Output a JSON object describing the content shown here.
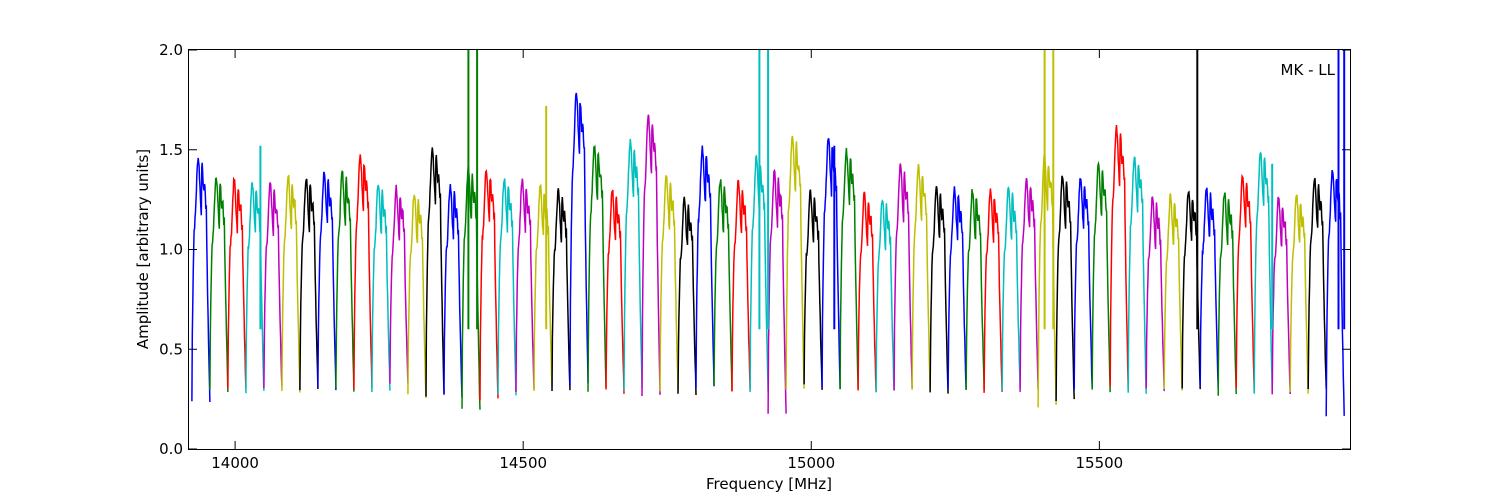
{
  "chart_data": {
    "type": "line",
    "title": "",
    "xlabel": "Frequency [MHz]",
    "ylabel": "Amplitude [arbitrary units]",
    "annotation": "MK - LL",
    "xlim": [
      13920,
      15935
    ],
    "ylim": [
      0.0,
      2.0
    ],
    "xticks": [
      14000,
      14500,
      15000,
      15500
    ],
    "yticks": [
      0.0,
      0.5,
      1.0,
      1.5,
      2.0
    ],
    "xtick_labels": [
      "14000",
      "14500",
      "15000",
      "15500"
    ],
    "ytick_labels": [
      "0.0",
      "0.5",
      "1.0",
      "1.5",
      "2.0"
    ],
    "grid": false,
    "legend": "none",
    "colors": [
      "#0000ff",
      "#008000",
      "#ff0000",
      "#00bfbf",
      "#bf00bf",
      "#bfbf00",
      "#000000"
    ],
    "band_start_mhz": 13925,
    "band_spacing_mhz": 31.25,
    "band_peaks": [
      1.4,
      1.31,
      1.29,
      1.28,
      1.27,
      1.31,
      1.3,
      1.33,
      1.33,
      1.41,
      1.27,
      1.25,
      1.22,
      1.45,
      1.26,
      1.35,
      1.34,
      1.3,
      1.29,
      1.26,
      1.24,
      1.72,
      1.46,
      1.24,
      1.48,
      1.61,
      1.31,
      1.2,
      1.45,
      1.29,
      1.28,
      1.4,
      1.33,
      1.51,
      1.23,
      1.5,
      1.44,
      1.22,
      1.2,
      1.36,
      1.36,
      1.25,
      1.25,
      1.24,
      1.24,
      1.25,
      1.3,
      1.41,
      1.31,
      1.3,
      1.37,
      1.55,
      1.41,
      1.2,
      1.21,
      1.24,
      1.25,
      1.23,
      1.31,
      1.43,
      1.2,
      1.22,
      1.3,
      1.34
    ],
    "band_troughs": [
      0.24,
      0.3,
      0.31,
      0.28,
      0.3,
      0.29,
      0.3,
      0.31,
      0.3,
      0.31,
      0.3,
      0.32,
      0.26,
      0.27,
      0.26,
      0.19,
      0.25,
      0.28,
      0.3,
      0.3,
      0.28,
      0.32,
      0.3,
      0.29,
      0.3,
      0.28,
      0.3,
      0.28,
      0.32,
      0.3,
      0.3,
      0.29,
      0.18,
      0.3,
      0.31,
      0.31,
      0.3,
      0.28,
      0.29,
      0.3,
      0.3,
      0.27,
      0.29,
      0.3,
      0.28,
      0.29,
      0.3,
      0.22,
      0.25,
      0.3,
      0.29,
      0.3,
      0.28,
      0.3,
      0.29,
      0.3,
      0.31,
      0.28,
      0.3,
      0.29,
      0.27,
      0.28,
      0.29,
      0.16
    ],
    "spikes": [
      {
        "x": 14044,
        "y": 1.52,
        "series": 3
      },
      {
        "x": 14405,
        "y": 2.0,
        "series": 1
      },
      {
        "x": 14420,
        "y": 2.0,
        "series": 1
      },
      {
        "x": 14540,
        "y": 1.72,
        "series": 5
      },
      {
        "x": 14910,
        "y": 2.0,
        "series": 3
      },
      {
        "x": 14925,
        "y": 2.0,
        "series": 3
      },
      {
        "x": 15040,
        "y": 1.52,
        "series": 0
      },
      {
        "x": 15405,
        "y": 2.0,
        "series": 5
      },
      {
        "x": 15420,
        "y": 2.0,
        "series": 5
      },
      {
        "x": 15670,
        "y": 2.0,
        "series": 6
      },
      {
        "x": 15800,
        "y": 1.43,
        "series": 3
      },
      {
        "x": 15915,
        "y": 2.0,
        "series": 0
      },
      {
        "x": 15925,
        "y": 2.0,
        "series": 0
      }
    ]
  }
}
